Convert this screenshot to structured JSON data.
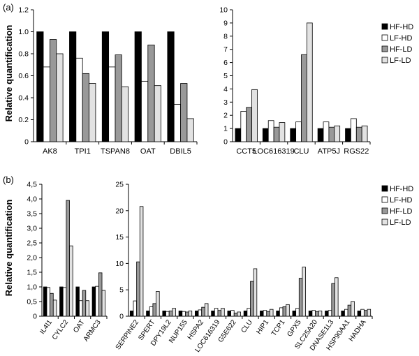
{
  "panels": [
    {
      "label": "(a)",
      "ylabel": "Relative quantification"
    },
    {
      "label": "(b)",
      "ylabel": "Relative quantification"
    }
  ],
  "colors": {
    "HF-HD": "#000000",
    "LF-HD": "#ffffff",
    "HF-LD": "#999999",
    "LF-LD": "#e2e2e2"
  },
  "chart_data": [
    {
      "type": "bar",
      "panel": "(a)",
      "categories": [
        "AK8",
        "TPI1",
        "TSPAN8",
        "OAT",
        "DBIL5"
      ],
      "series": [
        {
          "name": "HF-HD",
          "values": [
            1.0,
            1.0,
            1.0,
            1.0,
            1.0
          ]
        },
        {
          "name": "LF-HD",
          "values": [
            0.68,
            0.76,
            0.68,
            0.55,
            0.34
          ]
        },
        {
          "name": "HF-LD",
          "values": [
            0.93,
            0.62,
            0.79,
            0.88,
            0.53
          ]
        },
        {
          "name": "LF-LD",
          "values": [
            0.8,
            0.53,
            0.5,
            0.51,
            0.21
          ]
        }
      ],
      "ylim": [
        0,
        1.2
      ],
      "yticks": [
        "0",
        "0.2",
        "0.4",
        "0.6",
        "0.8",
        "1.0",
        "1.2"
      ]
    },
    {
      "type": "bar",
      "panel": "(a)",
      "categories": [
        "CCT5",
        "LOC616319",
        "CLU",
        "ATP5J",
        "RGS22"
      ],
      "series": [
        {
          "name": "HF-HD",
          "values": [
            1.0,
            1.0,
            1.0,
            1.0,
            1.0
          ]
        },
        {
          "name": "LF-HD",
          "values": [
            2.3,
            1.6,
            1.5,
            1.5,
            1.75
          ]
        },
        {
          "name": "HF-LD",
          "values": [
            2.6,
            1.1,
            6.6,
            1.1,
            1.1
          ]
        },
        {
          "name": "LF-LD",
          "values": [
            3.95,
            1.45,
            9.0,
            1.2,
            1.2
          ]
        }
      ],
      "ylim": [
        0,
        10
      ],
      "yticks": [
        "0",
        "1",
        "2",
        "3",
        "4",
        "5",
        "6",
        "7",
        "8",
        "9",
        "10"
      ],
      "legend": [
        "HF-HD",
        "LF-HD",
        "HF-LD",
        "LF-LD"
      ]
    },
    {
      "type": "bar",
      "panel": "(b)",
      "categories": [
        "IL4I1",
        "CYLC2",
        "OAT",
        "ARMC3"
      ],
      "series": [
        {
          "name": "HF-HD",
          "values": [
            1.0,
            1.0,
            1.0,
            1.0
          ]
        },
        {
          "name": "LF-HD",
          "values": [
            0.98,
            0.98,
            0.53,
            1.02
          ]
        },
        {
          "name": "HF-LD",
          "values": [
            0.78,
            3.95,
            0.88,
            1.48
          ]
        },
        {
          "name": "LF-LD",
          "values": [
            0.55,
            2.4,
            0.53,
            0.88
          ]
        }
      ],
      "ylim": [
        0,
        4.5
      ],
      "yticks": [
        "0",
        "0,5",
        "1,0",
        "1,5",
        "2,0",
        "2,5",
        "3,0",
        "3,5",
        "4,0",
        "4,5"
      ]
    },
    {
      "type": "bar",
      "panel": "(b)",
      "categories": [
        "SERPINE2",
        "SPERT",
        "DPY19L2",
        "NUP155",
        "HSPA2",
        "LOC616319",
        "G5E622",
        "CLU",
        "HIP1",
        "TCP1",
        "GPX5",
        "SLC25A20",
        "DNASE1L3",
        "HSP90AA1",
        "HADHA"
      ],
      "series": [
        {
          "name": "HF-HD",
          "values": [
            1.0,
            1.0,
            1.0,
            1.0,
            1.0,
            1.0,
            1.0,
            1.0,
            1.0,
            1.0,
            1.0,
            1.0,
            1.0,
            1.0,
            1.0
          ]
        },
        {
          "name": "LF-HD",
          "values": [
            2.9,
            1.8,
            0.9,
            0.9,
            1.2,
            1.5,
            1.1,
            1.5,
            1.1,
            1.6,
            1.5,
            1.1,
            1.1,
            1.3,
            1.3
          ]
        },
        {
          "name": "HF-LD",
          "values": [
            10.3,
            2.4,
            1.0,
            0.8,
            1.7,
            1.1,
            0.6,
            6.6,
            0.9,
            1.8,
            7.2,
            0.9,
            6.2,
            2.1,
            1.1
          ]
        },
        {
          "name": "LF-LD",
          "values": [
            20.8,
            4.7,
            1.5,
            1.0,
            2.4,
            1.5,
            0.8,
            9.0,
            1.3,
            2.2,
            9.3,
            1.0,
            7.3,
            2.8,
            1.3
          ]
        }
      ],
      "ylim": [
        0,
        25
      ],
      "yticks": [
        "0",
        "5",
        "10",
        "15",
        "20",
        "25"
      ],
      "legend": [
        "HF-HD",
        "LF-HD",
        "HF-LD",
        "LF-LD"
      ]
    }
  ]
}
